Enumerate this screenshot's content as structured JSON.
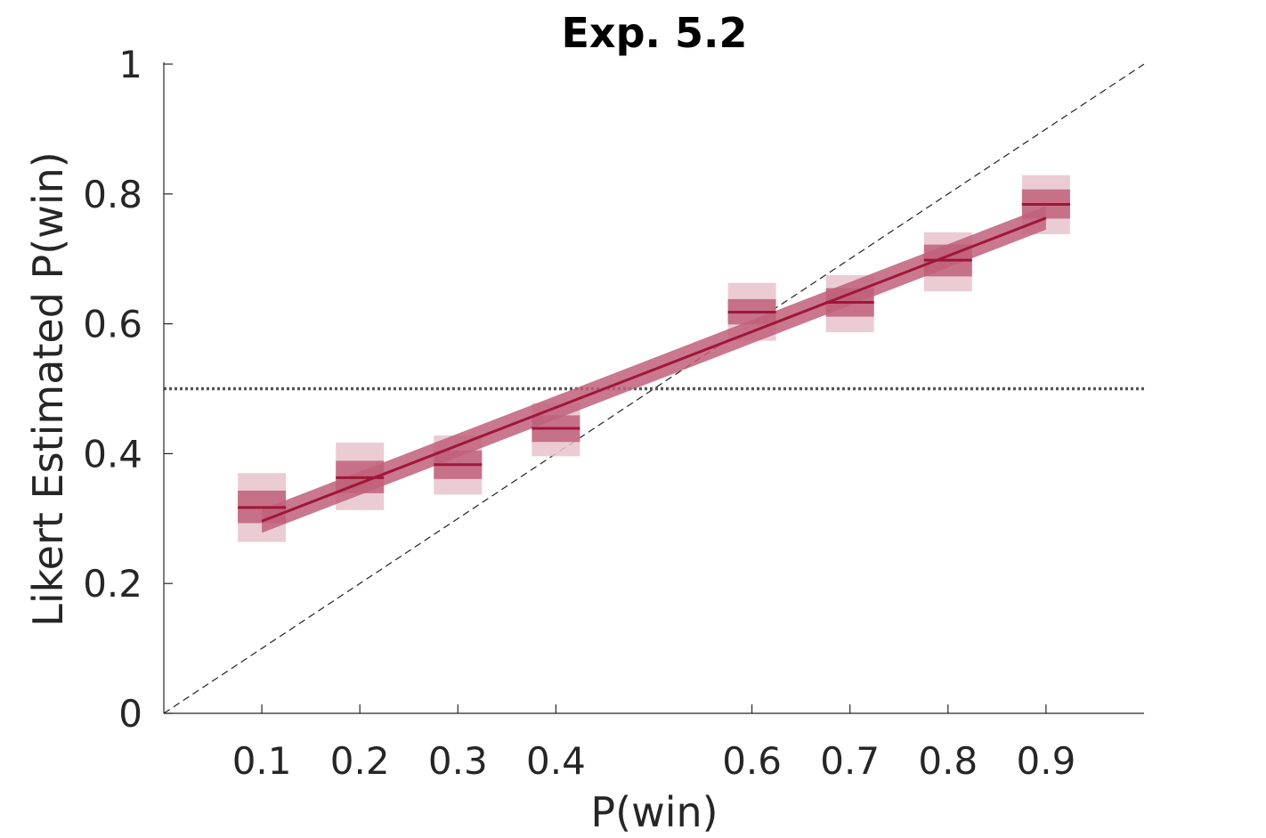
{
  "chart_data": {
    "type": "line",
    "title": "Exp. 5.2",
    "xlabel": "P(win)",
    "ylabel": "Likert Estimated P(win)",
    "xlim": [
      0,
      1
    ],
    "ylim": [
      0,
      1
    ],
    "x_ticks": [
      0.1,
      0.2,
      0.3,
      0.4,
      0.6,
      0.7,
      0.8,
      0.9
    ],
    "x_tick_labels": [
      "0.1",
      "0.2",
      "0.3",
      "0.4",
      "0.6",
      "0.7",
      "0.8",
      "0.9"
    ],
    "y_ticks": [
      0,
      0.2,
      0.4,
      0.6,
      0.8,
      1
    ],
    "y_tick_labels": [
      "0",
      "0.2",
      "0.4",
      "0.6",
      "0.8",
      "1"
    ],
    "grid": false,
    "reference_lines": {
      "identity": "dashed diagonal y = x",
      "chance": {
        "y": 0.5,
        "style": "dotted"
      }
    },
    "series": [
      {
        "kind": "condition_means",
        "x": [
          0.1,
          0.2,
          0.3,
          0.4,
          0.6,
          0.7,
          0.8,
          0.9
        ],
        "mean": [
          0.317,
          0.363,
          0.383,
          0.439,
          0.618,
          0.633,
          0.698,
          0.784
        ],
        "inner_band": [
          [
            0.293,
            0.343
          ],
          [
            0.339,
            0.389
          ],
          [
            0.361,
            0.405
          ],
          [
            0.418,
            0.459
          ],
          [
            0.599,
            0.638
          ],
          [
            0.611,
            0.655
          ],
          [
            0.673,
            0.722
          ],
          [
            0.762,
            0.807
          ]
        ],
        "outer_band": [
          [
            0.264,
            0.37
          ],
          [
            0.313,
            0.417
          ],
          [
            0.337,
            0.428
          ],
          [
            0.396,
            0.478
          ],
          [
            0.574,
            0.663
          ],
          [
            0.587,
            0.675
          ],
          [
            0.65,
            0.741
          ],
          [
            0.738,
            0.829
          ]
        ]
      },
      {
        "kind": "linear_fit",
        "x": [
          0.1,
          0.9
        ],
        "y": [
          0.296,
          0.763
        ],
        "band_halfwidth": 0.018
      }
    ],
    "colors": {
      "series": "#a0163a",
      "inner_band": "#c0607a",
      "outer_band": "#e8c3cd",
      "fit_band": "#c0607a",
      "reference": "#222222",
      "chance": "#555555"
    }
  }
}
